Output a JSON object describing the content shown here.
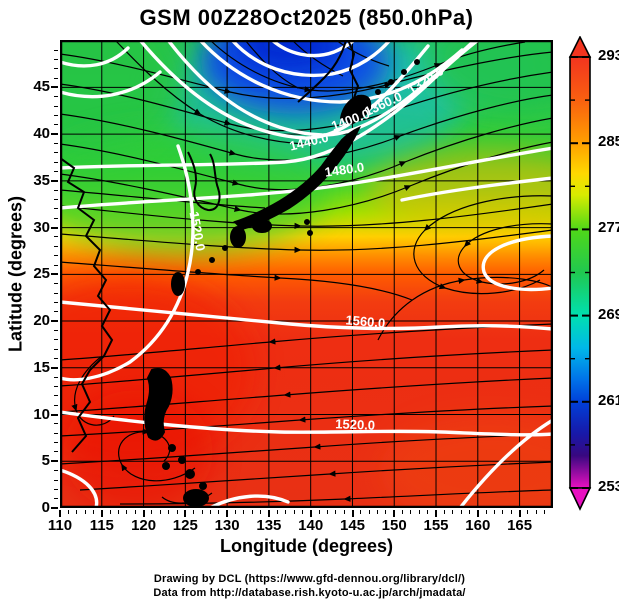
{
  "title": "GSM 00Z28Oct2025 (850.0hPa)",
  "axes": {
    "x": {
      "label": "Longitude (degrees)",
      "ticks": [
        "110",
        "115",
        "120",
        "125",
        "130",
        "135",
        "140",
        "145",
        "150",
        "155",
        "160",
        "165"
      ]
    },
    "y": {
      "label": "Latitude (degrees)",
      "ticks": [
        "0",
        "5",
        "10",
        "15",
        "20",
        "25",
        "30",
        "35",
        "40",
        "45"
      ]
    }
  },
  "colorbar": {
    "tick_labels": [
      "293",
      "285",
      "277",
      "269",
      "261",
      "253"
    ],
    "top_arrow_color": "#f2341f",
    "bottom_arrow_color": "#e810c0"
  },
  "contours": {
    "labels": [
      {
        "text": "1320.0"
      },
      {
        "text": "1360.0"
      },
      {
        "text": "1400.0"
      },
      {
        "text": "1440.0"
      },
      {
        "text": "1480.0"
      },
      {
        "text": "1520.0"
      },
      {
        "text": "1560.0"
      },
      {
        "text": "1520.0"
      }
    ]
  },
  "footer": {
    "line1": "Drawing by DCL (https://www.gfd-dennou.org/library/dcl/)",
    "line2": "Data from http://database.rish.kyoto-u.ac.jp/arch/jmadata/"
  },
  "chart_data": {
    "type": "heatmap",
    "subtype": "weather map: 850 hPa temperature shading + geopotential height contours (white) + wind streamlines (black)",
    "title": "GSM 00Z28Oct2025 (850.0hPa)",
    "model": "GSM",
    "valid_time": "00Z 28 Oct 2025",
    "level_hPa": 850.0,
    "xlabel": "Longitude (degrees)",
    "ylabel": "Latitude (degrees)",
    "xlim": [
      110,
      169
    ],
    "ylim": [
      0,
      50
    ],
    "x_ticks": [
      110,
      115,
      120,
      125,
      130,
      135,
      140,
      145,
      150,
      155,
      160,
      165
    ],
    "y_ticks": [
      0,
      5,
      10,
      15,
      20,
      25,
      30,
      35,
      40,
      45
    ],
    "grid": true,
    "colorbar": {
      "min": 253,
      "max": 293,
      "major_ticks": [
        293,
        285,
        277,
        269,
        261,
        253
      ],
      "minor_tick_step": 4,
      "orientation": "vertical-right",
      "palette_top_to_bottom": [
        "#f2341f",
        "#fa6010",
        "#ffa000",
        "#ffd800",
        "#d8ec00",
        "#50d818",
        "#20c850",
        "#00e0b0",
        "#00b8e8",
        "#0070e8",
        "#0040d8",
        "#1818a8",
        "#380880",
        "#e810c0"
      ]
    },
    "height_contour_labels_m": [
      1320.0,
      1360.0,
      1400.0,
      1440.0,
      1480.0,
      1520.0,
      1560.0
    ],
    "contour_interval_m": 40,
    "approx_temperature_K_grid": {
      "lons": [
        110,
        120,
        130,
        140,
        150,
        160,
        169
      ],
      "lats": [
        48,
        40,
        35,
        30,
        25,
        20,
        10,
        2
      ],
      "values": [
        [
          283,
          279,
          267,
          263,
          275,
          279,
          281
        ],
        [
          283,
          279,
          273,
          271,
          281,
          285,
          285
        ],
        [
          285,
          281,
          279,
          277,
          283,
          285,
          287
        ],
        [
          287,
          285,
          283,
          285,
          287,
          289,
          289
        ],
        [
          289,
          287,
          289,
          289,
          291,
          291,
          291
        ],
        [
          291,
          291,
          291,
          291,
          291,
          291,
          291
        ],
        [
          293,
          291,
          291,
          291,
          291,
          291,
          291
        ],
        [
          293,
          293,
          291,
          291,
          291,
          291,
          291
        ]
      ]
    },
    "features": [
      "cold-core low near 138E,48N with fan of tightly packed white height contours (1320-1480 m)",
      "strong westerly streamlines between 30N and 40N",
      "subtropical anticyclone centered near 160E,27N with hooked 1560 m contour",
      "tropical easterlies south of 20N with cyclonic vortices near the Philippines"
    ]
  }
}
